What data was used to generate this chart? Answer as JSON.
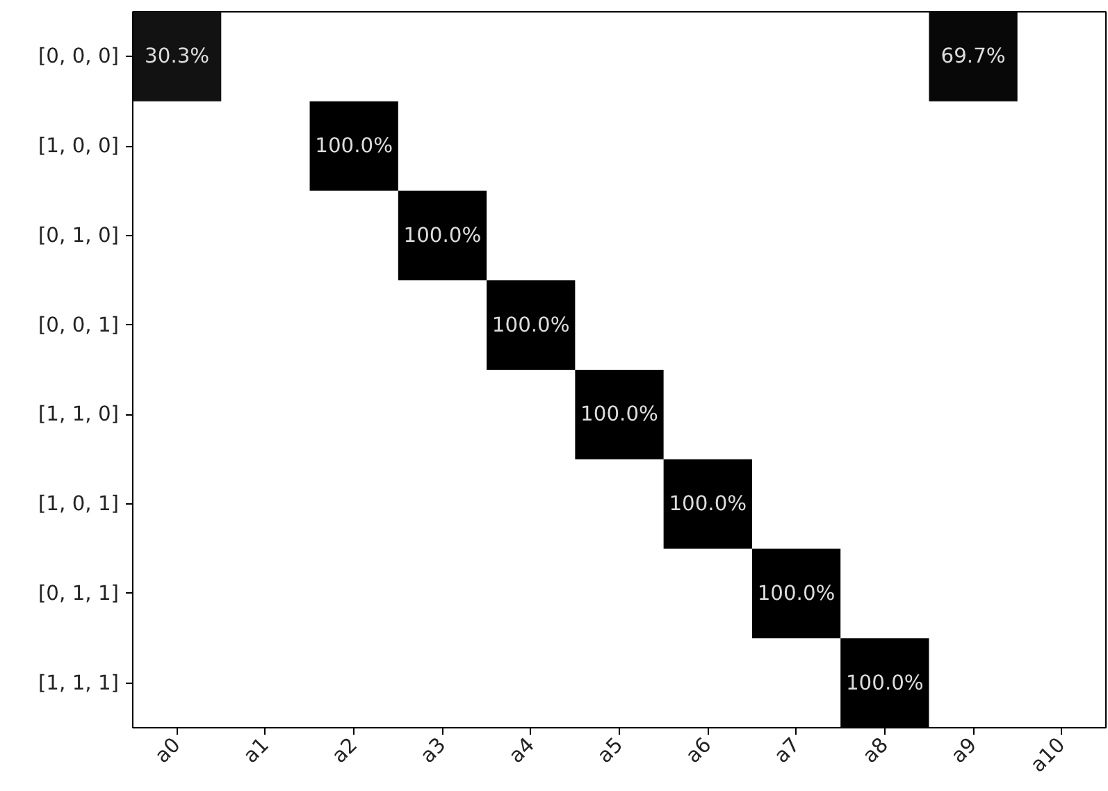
{
  "chart_data": {
    "type": "heatmap",
    "categories": [
      "a0",
      "a1",
      "a2",
      "a3",
      "a4",
      "a5",
      "a6",
      "a7",
      "a8",
      "a9",
      "a10"
    ],
    "y_categories": [
      "[0, 0, 0]",
      "[1, 0, 0]",
      "[0, 1, 0]",
      "[0, 0, 1]",
      "[1, 1, 0]",
      "[1, 0, 1]",
      "[0, 1, 1]",
      "[1, 1, 1]"
    ],
    "cells": [
      [
        30.3,
        null,
        null,
        null,
        null,
        null,
        null,
        null,
        null,
        69.7,
        null
      ],
      [
        null,
        null,
        100.0,
        null,
        null,
        null,
        null,
        null,
        null,
        null,
        null
      ],
      [
        null,
        null,
        null,
        100.0,
        null,
        null,
        null,
        null,
        null,
        null,
        null
      ],
      [
        null,
        null,
        null,
        null,
        100.0,
        null,
        null,
        null,
        null,
        null,
        null
      ],
      [
        null,
        null,
        null,
        null,
        null,
        100.0,
        null,
        null,
        null,
        null,
        null
      ],
      [
        null,
        null,
        null,
        null,
        null,
        null,
        100.0,
        null,
        null,
        null,
        null
      ],
      [
        null,
        null,
        null,
        null,
        null,
        null,
        null,
        100.0,
        null,
        null,
        null
      ],
      [
        null,
        null,
        null,
        null,
        null,
        null,
        null,
        null,
        100.0,
        null,
        null
      ]
    ],
    "cell_labels": [
      [
        "30.3%",
        null,
        null,
        null,
        null,
        null,
        null,
        null,
        null,
        "69.7%",
        null
      ],
      [
        null,
        null,
        "100.0%",
        null,
        null,
        null,
        null,
        null,
        null,
        null,
        null
      ],
      [
        null,
        null,
        null,
        "100.0%",
        null,
        null,
        null,
        null,
        null,
        null,
        null
      ],
      [
        null,
        null,
        null,
        null,
        "100.0%",
        null,
        null,
        null,
        null,
        null,
        null
      ],
      [
        null,
        null,
        null,
        null,
        null,
        "100.0%",
        null,
        null,
        null,
        null,
        null
      ],
      [
        null,
        null,
        null,
        null,
        null,
        null,
        "100.0%",
        null,
        null,
        null,
        null
      ],
      [
        null,
        null,
        null,
        null,
        null,
        null,
        null,
        "100.0%",
        null,
        null,
        null
      ],
      [
        null,
        null,
        null,
        null,
        null,
        null,
        null,
        null,
        "100.0%",
        null,
        null
      ]
    ],
    "data_labels": true,
    "grid": false
  }
}
